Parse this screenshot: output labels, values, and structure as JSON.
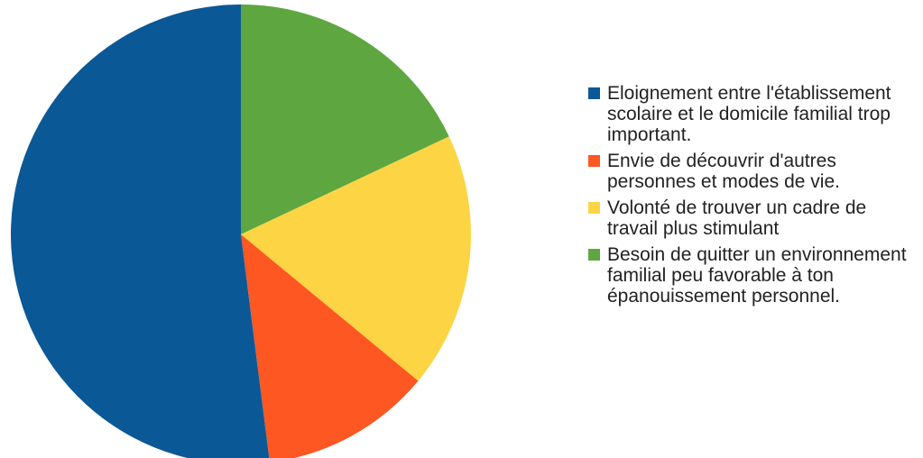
{
  "chart_data": {
    "type": "pie",
    "categories": [
      "Eloignement entre l'établissement scolaire et le domicile familial trop important.",
      "Envie de découvrir d'autres personnes et modes de vie.",
      "Volonté de trouver un cadre de travail plus stimulant",
      "Besoin de quitter un environnement familial peu favorable à ton épanouissement personnel."
    ],
    "values": [
      52,
      12,
      18,
      18
    ],
    "colors": [
      "#0b5896",
      "#ff5722",
      "#fdd444",
      "#5ea63f"
    ],
    "legend_position": "right"
  }
}
